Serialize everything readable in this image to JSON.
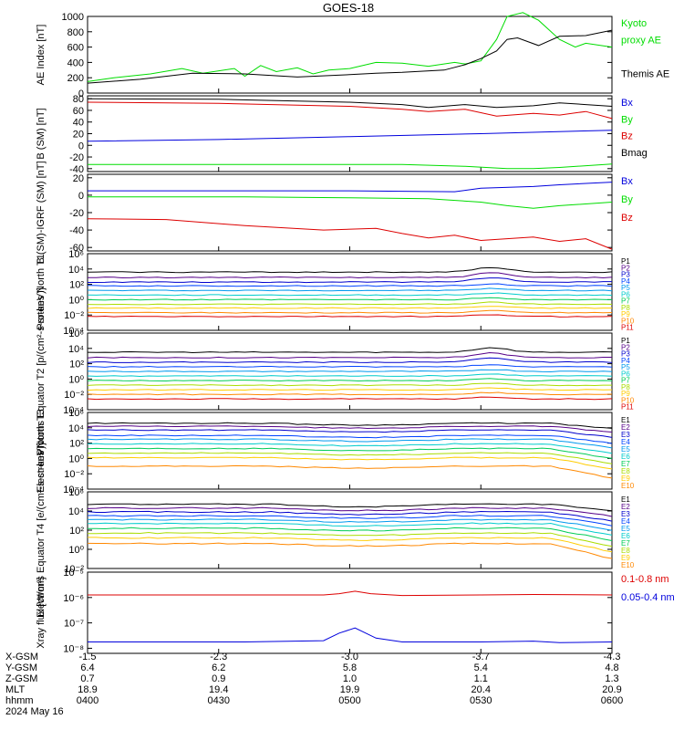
{
  "title": "GOES-18",
  "colors": {
    "black": "#000000",
    "blue": "#0000dd",
    "green": "#00dd00",
    "red": "#dd0000",
    "P": [
      "#000000",
      "#550088",
      "#0000cc",
      "#0044ff",
      "#0099ee",
      "#00cccc",
      "#00cc55",
      "#aadd00",
      "#ffcc00",
      "#ff8800",
      "#dd0000"
    ],
    "E": [
      "#000000",
      "#550088",
      "#0000cc",
      "#0044ff",
      "#0099ee",
      "#00cccc",
      "#00cc55",
      "#aadd00",
      "#ffcc00",
      "#ff8800",
      "#dd0000"
    ]
  },
  "chart_data": [
    {
      "type": "line",
      "ylabel": "AE Index [nT]",
      "ylim": [
        0,
        1000
      ],
      "yticks": [
        {
          "v": 0,
          "t": "0"
        },
        {
          "v": 200,
          "t": "200"
        },
        {
          "v": 400,
          "t": "400"
        },
        {
          "v": 600,
          "t": "600"
        },
        {
          "v": 800,
          "t": "800"
        },
        {
          "v": 1000,
          "t": "1000"
        }
      ],
      "legend": [
        {
          "text": "Kyoto",
          "color": "green"
        },
        {
          "text": "proxy AE",
          "color": "green"
        },
        {
          "text": "",
          "color": "black"
        },
        {
          "text": "Themis AE",
          "color": "black"
        }
      ],
      "series": [
        {
          "name": "Kyoto proxy AE",
          "color": "green",
          "x": [
            0,
            0.05,
            0.12,
            0.18,
            0.22,
            0.28,
            0.3,
            0.33,
            0.36,
            0.4,
            0.43,
            0.46,
            0.5,
            0.55,
            0.6,
            0.65,
            0.7,
            0.72,
            0.75,
            0.78,
            0.8,
            0.83,
            0.86,
            0.9,
            0.93,
            0.95,
            1
          ],
          "y": [
            150,
            200,
            250,
            320,
            260,
            320,
            220,
            360,
            280,
            330,
            250,
            300,
            320,
            400,
            390,
            350,
            400,
            380,
            420,
            700,
            1000,
            1050,
            950,
            700,
            600,
            650,
            600
          ]
        },
        {
          "name": "Themis AE",
          "color": "black",
          "x": [
            0,
            0.1,
            0.2,
            0.3,
            0.4,
            0.5,
            0.55,
            0.6,
            0.68,
            0.72,
            0.75,
            0.78,
            0.8,
            0.82,
            0.86,
            0.9,
            0.95,
            1
          ],
          "y": [
            130,
            180,
            260,
            250,
            210,
            240,
            260,
            270,
            300,
            370,
            450,
            550,
            700,
            720,
            620,
            740,
            750,
            820
          ]
        }
      ]
    },
    {
      "type": "line",
      "ylabel": "B (SM) [nT]",
      "ylim": [
        -45,
        85
      ],
      "yticks": [
        {
          "v": -40,
          "t": "-40"
        },
        {
          "v": -20,
          "t": "-20"
        },
        {
          "v": 0,
          "t": "0"
        },
        {
          "v": 20,
          "t": "20"
        },
        {
          "v": 40,
          "t": "40"
        },
        {
          "v": 60,
          "t": "60"
        },
        {
          "v": 80,
          "t": "80"
        }
      ],
      "legend": [
        {
          "text": "Bx",
          "color": "blue"
        },
        {
          "text": "By",
          "color": "green"
        },
        {
          "text": "Bz",
          "color": "red"
        },
        {
          "text": "Bmag",
          "color": "black"
        }
      ],
      "series": [
        {
          "name": "Bx",
          "color": "blue",
          "x": [
            0,
            0.25,
            0.5,
            0.75,
            1
          ],
          "y": [
            7,
            10,
            15,
            20,
            26
          ]
        },
        {
          "name": "By",
          "color": "green",
          "x": [
            0,
            0.3,
            0.6,
            0.72,
            0.8,
            0.85,
            0.9,
            1
          ],
          "y": [
            -33,
            -33,
            -33,
            -36,
            -40,
            -40,
            -38,
            -32
          ]
        },
        {
          "name": "Bz",
          "color": "red",
          "x": [
            0,
            0.25,
            0.5,
            0.6,
            0.65,
            0.72,
            0.78,
            0.85,
            0.9,
            0.95,
            1
          ],
          "y": [
            74,
            72,
            67,
            62,
            58,
            62,
            50,
            55,
            52,
            58,
            46
          ]
        },
        {
          "name": "Bmag",
          "color": "black",
          "x": [
            0,
            0.25,
            0.5,
            0.6,
            0.65,
            0.72,
            0.78,
            0.85,
            0.9,
            0.95,
            1
          ],
          "y": [
            80,
            79,
            74,
            70,
            65,
            70,
            65,
            68,
            73,
            70,
            67
          ]
        }
      ]
    },
    {
      "type": "line",
      "ylabel": "B (SM)-IGRF (SM) [nT]",
      "ylim": [
        -64,
        24
      ],
      "yticks": [
        {
          "v": -60,
          "t": "-60"
        },
        {
          "v": -40,
          "t": "-40"
        },
        {
          "v": -20,
          "t": "-20"
        },
        {
          "v": 0,
          "t": "0"
        },
        {
          "v": 20,
          "t": "20"
        }
      ],
      "legend": [
        {
          "text": "Bx",
          "color": "blue"
        },
        {
          "text": "By",
          "color": "green"
        },
        {
          "text": "Bz",
          "color": "red"
        }
      ],
      "series": [
        {
          "name": "Bx",
          "color": "blue",
          "x": [
            0,
            0.3,
            0.5,
            0.7,
            0.75,
            0.85,
            0.9,
            1
          ],
          "y": [
            5,
            5,
            5,
            4,
            8,
            10,
            12,
            15
          ]
        },
        {
          "name": "By",
          "color": "green",
          "x": [
            0,
            0.3,
            0.5,
            0.65,
            0.75,
            0.8,
            0.85,
            0.9,
            1
          ],
          "y": [
            -2,
            -2,
            -3,
            -4,
            -8,
            -12,
            -15,
            -12,
            -8
          ]
        },
        {
          "name": "Bz",
          "color": "red",
          "x": [
            0,
            0.15,
            0.3,
            0.45,
            0.55,
            0.6,
            0.65,
            0.7,
            0.75,
            0.8,
            0.85,
            0.9,
            0.95,
            1
          ],
          "y": [
            -27,
            -28,
            -35,
            -40,
            -38,
            -44,
            -49,
            -46,
            -52,
            -50,
            -48,
            -53,
            -50,
            -62
          ]
        }
      ]
    },
    {
      "type": "line",
      "log": true,
      "ylabel": "Protons North T1",
      "ylim": [
        -4,
        6
      ],
      "yticks": [
        {
          "v": -4,
          "t": "10⁻⁴"
        },
        {
          "v": -2,
          "t": "10⁻²"
        },
        {
          "v": 0,
          "t": "10⁰"
        },
        {
          "v": 2,
          "t": "10²"
        },
        {
          "v": 4,
          "t": "10⁴"
        },
        {
          "v": 6,
          "t": "10⁶"
        }
      ],
      "legend": [
        "P1",
        "P2",
        "P3",
        "P4",
        "P5",
        "P6",
        "P7",
        "P8",
        "P9",
        "P10",
        "P11"
      ],
      "series_log10": [
        3.6,
        2.9,
        2.3,
        1.8,
        1.2,
        0.6,
        0.0,
        -0.6,
        -1.1,
        -1.7,
        -2.2
      ],
      "bump_at": 0.77
    },
    {
      "type": "line",
      "log": true,
      "ylabel": "Protons Equator T2 [p/(cm²-s-sr-keV)]",
      "ylim": [
        -4,
        6
      ],
      "yticks": [
        {
          "v": -4,
          "t": "10⁻⁴"
        },
        {
          "v": -2,
          "t": "10⁻²"
        },
        {
          "v": 0,
          "t": "10⁰"
        },
        {
          "v": 2,
          "t": "10²"
        },
        {
          "v": 4,
          "t": "10⁴"
        },
        {
          "v": 6,
          "t": "10⁶"
        }
      ],
      "legend": [
        "P1",
        "P2",
        "P3",
        "P4",
        "P5",
        "P6",
        "P7",
        "P8",
        "P9",
        "P10",
        "P11"
      ],
      "series_log10": [
        3.5,
        2.8,
        2.2,
        1.6,
        1.0,
        0.4,
        -0.2,
        -0.8,
        -1.4,
        -2.0,
        -2.6
      ],
      "bump_at": 0.77
    },
    {
      "type": "line",
      "log": true,
      "ylabel": "Electrons North T3",
      "ylim": [
        -4,
        6
      ],
      "yticks": [
        {
          "v": -4,
          "t": "10⁻⁴"
        },
        {
          "v": -2,
          "t": "10⁻²"
        },
        {
          "v": 0,
          "t": "10⁰"
        },
        {
          "v": 2,
          "t": "10²"
        },
        {
          "v": 4,
          "t": "10⁴"
        },
        {
          "v": 6,
          "t": "10⁶"
        }
      ],
      "legend": [
        "E1",
        "E2",
        "E3",
        "E4",
        "E5",
        "E6",
        "E7",
        "E8",
        "E9",
        "E10"
      ],
      "series_log10": [
        4.6,
        4.2,
        3.7,
        3.0,
        2.5,
        1.9,
        1.3,
        0.7,
        0.1,
        -1.0
      ],
      "dropoff_at": 0.88
    },
    {
      "type": "line",
      "log": true,
      "ylabel": "Electrons Equator T4 [e/(cm²-s-sr-keV)]",
      "ylim": [
        -2,
        6
      ],
      "yticks": [
        {
          "v": -2,
          "t": "10⁻²"
        },
        {
          "v": 0,
          "t": "10⁰"
        },
        {
          "v": 2,
          "t": "10²"
        },
        {
          "v": 4,
          "t": "10⁴"
        },
        {
          "v": 6,
          "t": "10⁶"
        }
      ],
      "legend": [
        "E1",
        "E2",
        "E3",
        "E4",
        "E5",
        "E6",
        "E7",
        "E8",
        "E9",
        "E10"
      ],
      "series_log10": [
        4.7,
        4.3,
        3.9,
        3.5,
        3.1,
        2.7,
        2.2,
        1.7,
        1.2,
        0.6
      ],
      "dropoff_at": 0.88
    },
    {
      "type": "line",
      "log": true,
      "ylabel": "Xray flux [W/m²]",
      "ylim": [
        -8.2,
        -5
      ],
      "yticks": [
        {
          "v": -8,
          "t": "10⁻⁸"
        },
        {
          "v": -7,
          "t": "10⁻⁷"
        },
        {
          "v": -6,
          "t": "10⁻⁶"
        },
        {
          "v": -5,
          "t": "10⁻⁵"
        }
      ],
      "legend": [
        {
          "text": "0.1-0.8 nm",
          "color": "red"
        },
        {
          "text": "0.05-0.4 nm",
          "color": "blue"
        }
      ],
      "series": [
        {
          "name": "0.1-0.8 nm",
          "color": "red",
          "x": [
            0,
            0.45,
            0.48,
            0.51,
            0.54,
            0.6,
            0.75,
            0.85,
            1
          ],
          "y": [
            -5.9,
            -5.9,
            -5.85,
            -5.75,
            -5.85,
            -5.92,
            -5.9,
            -5.88,
            -5.9
          ]
        },
        {
          "name": "0.05-0.4 nm",
          "color": "blue",
          "x": [
            0,
            0.3,
            0.45,
            0.48,
            0.51,
            0.55,
            0.6,
            0.75,
            0.85,
            0.9,
            1
          ],
          "y": [
            -7.75,
            -7.75,
            -7.7,
            -7.4,
            -7.2,
            -7.6,
            -7.75,
            -7.75,
            -7.72,
            -7.78,
            -7.75
          ]
        }
      ]
    }
  ],
  "x_axis": {
    "row_labels": [
      "X-GSM",
      "Y-GSM",
      "Z-GSM",
      "MLT",
      "hhmm",
      "2024 May 16"
    ],
    "columns": [
      {
        "values": [
          "-1.5",
          "6.4",
          "0.7",
          "18.9",
          "0400"
        ]
      },
      {
        "values": [
          "-2.3",
          "6.2",
          "0.9",
          "19.4",
          "0430"
        ]
      },
      {
        "values": [
          "-3.0",
          "5.8",
          "1.0",
          "19.9",
          "0500"
        ]
      },
      {
        "values": [
          "-3.7",
          "5.4",
          "1.1",
          "20.4",
          "0530"
        ]
      },
      {
        "values": [
          "-4.3",
          "4.8",
          "1.3",
          "20.9",
          "0600"
        ]
      }
    ]
  }
}
